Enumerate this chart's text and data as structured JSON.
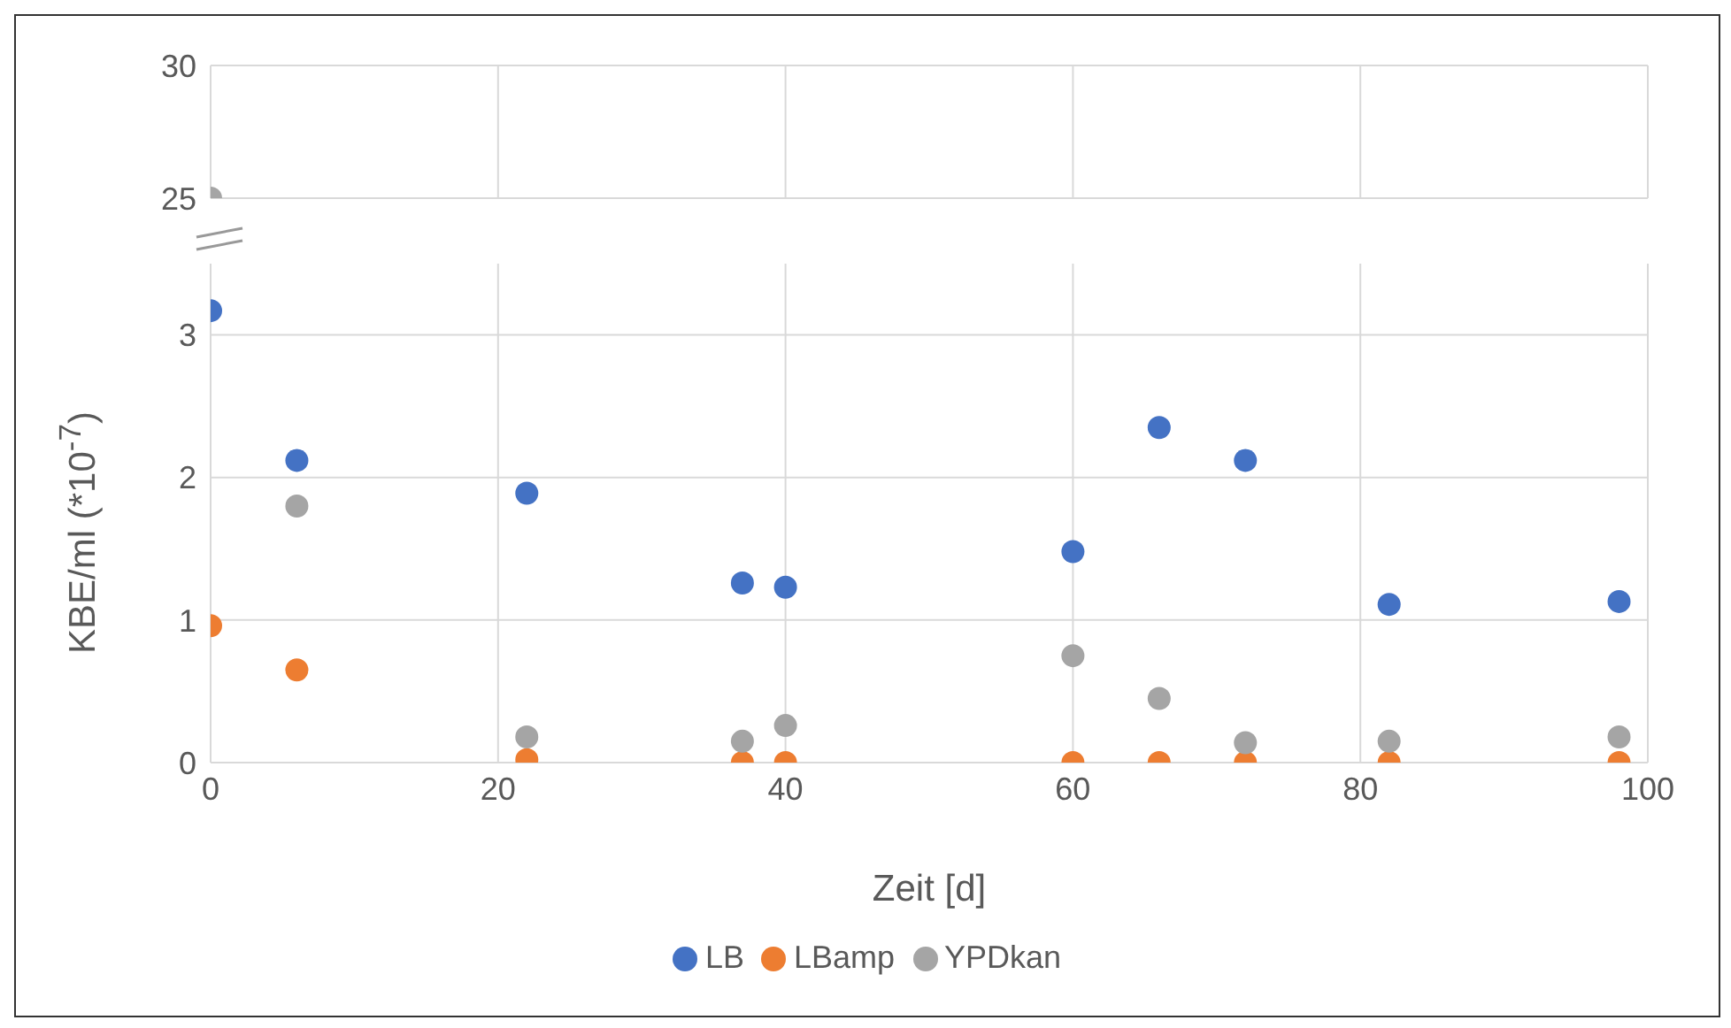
{
  "chart_data": [
    {
      "type": "scatter",
      "x": [
        0
      ],
      "series": [
        {
          "color": "#a5a5a5",
          "values": [
            25
          ]
        }
      ],
      "xlim": [
        0,
        100
      ],
      "xticks": [
        0,
        20,
        40,
        60,
        80,
        100
      ],
      "ylim": [
        25,
        30
      ],
      "yticks": [
        25,
        30
      ],
      "grid": true,
      "marker": "circle",
      "tick_labels": "y",
      "legend": false
    },
    {
      "type": "scatter",
      "x": [
        0,
        6,
        22,
        37,
        40,
        60,
        66,
        72,
        82,
        98
      ],
      "xlabel": "Zeit [d]",
      "ylabel": "KBE/ml (*10$^{-7}$)",
      "series": [
        {
          "name": "LB",
          "color": "#4472c4",
          "values": [
            3.17,
            2.12,
            1.89,
            1.26,
            1.23,
            1.48,
            2.35,
            2.12,
            1.11,
            1.13
          ]
        },
        {
          "name": "LBamp",
          "color": "#ed7d31",
          "values": [
            0.96,
            0.65,
            0.02,
            0,
            0,
            0,
            0,
            0,
            0,
            0
          ]
        },
        {
          "name": "YPDkan",
          "color": "#a5a5a5",
          "values": [
            null,
            1.8,
            0.18,
            0.15,
            0.26,
            0.75,
            0.45,
            0.14,
            0.15,
            0.18
          ]
        }
      ],
      "xlim": [
        0,
        100
      ],
      "xticks": [
        0,
        20,
        40,
        60,
        80,
        100
      ],
      "ylim": [
        0,
        3.5
      ],
      "yticks": [
        0,
        1,
        2,
        3
      ],
      "grid": true,
      "marker": "circle",
      "legend": "bottom"
    }
  ]
}
